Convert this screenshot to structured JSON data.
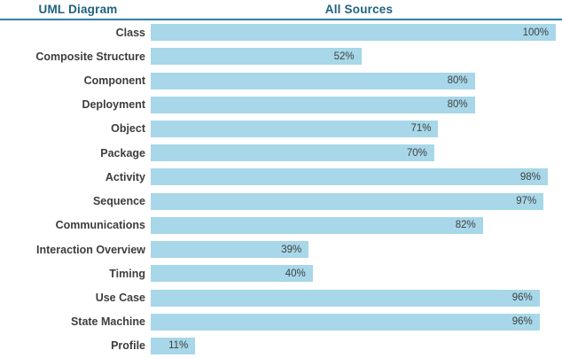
{
  "header": {
    "left_title": "UML Diagram",
    "right_title": "All Sources"
  },
  "colors": {
    "bar": "#A7D7E8",
    "header_text": "#1F627F",
    "rule": "#2E7FAE",
    "category_text": "#3D3D3D",
    "value_text": "#404040"
  },
  "chart_data": {
    "type": "bar",
    "orientation": "horizontal",
    "title": "All Sources",
    "xlabel": "",
    "ylabel": "UML Diagram",
    "xlim": [
      0,
      100
    ],
    "grid": false,
    "legend": false,
    "value_suffix": "%",
    "categories": [
      "Class",
      "Composite Structure",
      "Component",
      "Deployment",
      "Object",
      "Package",
      "Activity",
      "Sequence",
      "Communications",
      "Interaction Overview",
      "Timing",
      "Use Case",
      "State Machine",
      "Profile"
    ],
    "values": [
      100,
      52,
      80,
      80,
      71,
      70,
      98,
      97,
      82,
      39,
      40,
      96,
      96,
      11
    ],
    "value_labels": [
      "100%",
      "52%",
      "80%",
      "80%",
      "71%",
      "70%",
      "98%",
      "97%",
      "82%",
      "39%",
      "40%",
      "96%",
      "96%",
      "11%"
    ]
  }
}
